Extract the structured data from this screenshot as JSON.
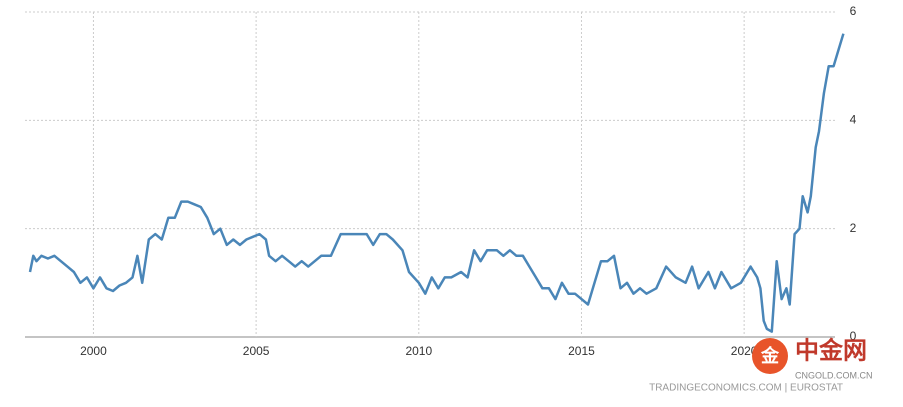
{
  "chart_data": {
    "type": "line",
    "x": [
      1998.05,
      1998.15,
      1998.25,
      1998.4,
      1998.6,
      1998.8,
      1999.0,
      1999.2,
      1999.4,
      1999.6,
      1999.8,
      2000.0,
      2000.2,
      2000.4,
      2000.6,
      2000.8,
      2001.0,
      2001.2,
      2001.35,
      2001.5,
      2001.7,
      2001.9,
      2002.1,
      2002.3,
      2002.5,
      2002.7,
      2002.9,
      2003.1,
      2003.3,
      2003.5,
      2003.7,
      2003.9,
      2004.1,
      2004.3,
      2004.5,
      2004.7,
      2004.9,
      2005.1,
      2005.3,
      2005.4,
      2005.6,
      2005.8,
      2006.0,
      2006.2,
      2006.4,
      2006.6,
      2006.8,
      2007.0,
      2007.3,
      2007.6,
      2007.9,
      2008.2,
      2008.4,
      2008.6,
      2008.8,
      2009.0,
      2009.2,
      2009.5,
      2009.7,
      2010.0,
      2010.2,
      2010.4,
      2010.6,
      2010.8,
      2011.0,
      2011.3,
      2011.5,
      2011.7,
      2011.9,
      2012.1,
      2012.4,
      2012.6,
      2012.8,
      2013.0,
      2013.2,
      2013.4,
      2013.6,
      2013.8,
      2014.0,
      2014.2,
      2014.4,
      2014.6,
      2014.8,
      2015.0,
      2015.2,
      2015.4,
      2015.6,
      2015.8,
      2016.0,
      2016.2,
      2016.4,
      2016.6,
      2016.8,
      2017.0,
      2017.3,
      2017.6,
      2017.9,
      2018.2,
      2018.4,
      2018.6,
      2018.9,
      2019.1,
      2019.3,
      2019.6,
      2019.9,
      2020.2,
      2020.4,
      2020.5,
      2020.6,
      2020.7,
      2020.85,
      2021.0,
      2021.15,
      2021.3,
      2021.4,
      2021.55,
      2021.7,
      2021.8,
      2021.95,
      2022.05,
      2022.2,
      2022.3,
      2022.45,
      2022.6,
      2022.75,
      2022.9,
      2023.05
    ],
    "series": [
      {
        "color": "#4a86b8",
        "values": [
          1.2,
          1.5,
          1.4,
          1.5,
          1.45,
          1.5,
          1.4,
          1.3,
          1.2,
          1.0,
          1.1,
          0.9,
          1.1,
          0.9,
          0.85,
          0.95,
          1.0,
          1.1,
          1.5,
          1.0,
          1.8,
          1.9,
          1.8,
          2.2,
          2.2,
          2.5,
          2.5,
          2.45,
          2.4,
          2.2,
          1.9,
          2.0,
          1.7,
          1.8,
          1.7,
          1.8,
          1.85,
          1.9,
          1.8,
          1.5,
          1.4,
          1.5,
          1.4,
          1.3,
          1.4,
          1.3,
          1.4,
          1.5,
          1.5,
          1.9,
          1.9,
          1.9,
          1.9,
          1.7,
          1.9,
          1.9,
          1.8,
          1.6,
          1.2,
          1.0,
          0.8,
          1.1,
          0.9,
          1.1,
          1.1,
          1.2,
          1.1,
          1.6,
          1.4,
          1.6,
          1.6,
          1.5,
          1.6,
          1.5,
          1.5,
          1.3,
          1.1,
          0.9,
          0.9,
          0.7,
          1.0,
          0.8,
          0.8,
          0.7,
          0.6,
          1.0,
          1.4,
          1.4,
          1.5,
          0.9,
          1.0,
          0.8,
          0.9,
          0.8,
          0.9,
          1.3,
          1.1,
          1.0,
          1.3,
          0.9,
          1.2,
          0.9,
          1.2,
          0.9,
          1.0,
          1.3,
          1.1,
          0.9,
          0.3,
          0.15,
          0.1,
          1.4,
          0.7,
          0.9,
          0.6,
          1.9,
          2.0,
          2.6,
          2.3,
          2.6,
          3.5,
          3.8,
          4.5,
          5.0,
          5.0,
          5.3,
          5.6
        ]
      }
    ],
    "xlim": [
      1998.05,
      2023.1
    ],
    "xticks": [
      2000,
      2005,
      2010,
      2015,
      2020
    ],
    "ylim": [
      0,
      6
    ],
    "yticks": [
      0,
      2,
      4,
      6
    ],
    "grid": true,
    "source": "TRADINGECONOMICS.COM | EUROSTAT",
    "logo": "中金网",
    "logo_site": "CNGOLD.COM.CN"
  }
}
